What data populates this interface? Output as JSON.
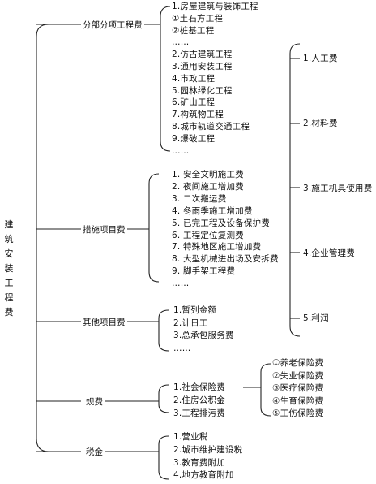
{
  "root": "建筑安装工程费",
  "categories": [
    {
      "label": "分部分项工程费",
      "items": [
        "1.房屋建筑与装饰工程",
        "①土石方工程",
        "②桩基工程",
        "……",
        "2.仿古建筑工程",
        "3.通用安装工程",
        "4.市政工程",
        "5.园林绿化工程",
        "6.矿山工程",
        "7.构筑物工程",
        "8.城市轨道交通工程",
        "9.爆破工程",
        "……"
      ]
    },
    {
      "label": "措施项目费",
      "items": [
        "1.  安全文明施工费",
        "2.  夜间施工增加费",
        "3.  二次搬运费",
        "4.  冬雨季施工增加费",
        "5.  已完工程及设备保护费",
        "6.  工程定位复测费",
        "7.  特殊地区施工增加费",
        "8.  大型机械进出场及安拆费",
        "9.  脚手架工程费",
        "……"
      ]
    },
    {
      "label": "其他项目费",
      "items": [
        "1.暂列金额",
        "2.计日工",
        "3.总承包服务费",
        "……"
      ]
    },
    {
      "label": "规费",
      "items": [
        "1.社会保险费",
        "2.住房公积金",
        "3.工程排污费"
      ],
      "sub_items": [
        "①养老保险费",
        "②失业保险费",
        "③医疗保险费",
        "④生育保险费",
        "⑤工伤保险费"
      ]
    },
    {
      "label": "税金",
      "items": [
        "1.营业税",
        "2.城市维护建设税",
        "3.教育费附加",
        "4.地方教育附加"
      ]
    }
  ],
  "components": [
    "1.人工费",
    "2.材料费",
    "3.施工机具使用费",
    "4.企业管理费",
    "5.利润"
  ]
}
